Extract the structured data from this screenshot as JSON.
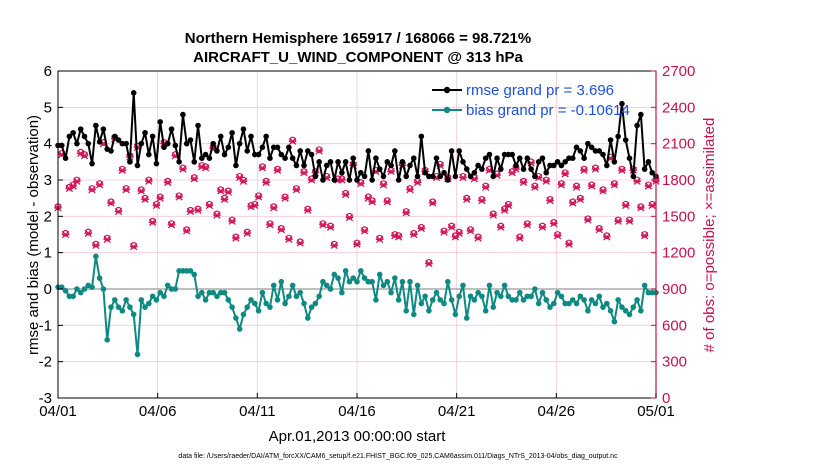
{
  "chart_data": {
    "type": "line",
    "title": "Northern Hemisphere 165917 / 168066 = 98.721%",
    "subtitle": "AIRCRAFT_U_WIND_COMPONENT @ 313 hPa",
    "xlabel": "Apr.01,2013 00:00:00 start",
    "ylabel_left": "rmse and bias (model - observation)",
    "ylabel_right": "# of obs: o=possible; ×=assimilated",
    "footnote": "data file: /Users/raeder/DAI/ATM_forcXX/CAM6_setup/f.e21.FHIST_BGC.f09_025.CAM6assim.011/Diags_NTrS_2013-04/obs_diag_output.nc",
    "x_tick_labels": [
      "04/01",
      "04/06",
      "04/11",
      "04/16",
      "04/21",
      "04/26",
      "05/01"
    ],
    "x_tick_days": [
      0,
      5,
      10,
      15,
      20,
      25,
      30
    ],
    "x_range_days": [
      0,
      30
    ],
    "y_left_ticks": [
      "-3",
      "-2",
      "-1",
      "0",
      "1",
      "2",
      "3",
      "4",
      "5",
      "6"
    ],
    "ylim_left": [
      -3,
      6
    ],
    "y_right_ticks": [
      "0",
      "300",
      "600",
      "900",
      "1200",
      "1500",
      "1800",
      "2100",
      "2400",
      "2700"
    ],
    "ylim_right": [
      0,
      2700
    ],
    "grid": true,
    "legend_position": "top-right",
    "colors": {
      "rmse": "#000000",
      "bias": "#0e8a82",
      "obs": "#d2155a",
      "zero_line": "#aaaaaa",
      "grid": "#f2c8d6",
      "left_axis": "#000000",
      "right_axis": "#c8104e",
      "legend_text": "#1f4fe0"
    },
    "series": [
      {
        "name": "rmse grand pr = 3.696",
        "axis": "left",
        "values": [
          3.95,
          3.95,
          3.6,
          4.2,
          4.3,
          4.0,
          4.4,
          4.2,
          4.0,
          3.45,
          4.5,
          4.05,
          4.4,
          3.85,
          3.8,
          4.2,
          4.1,
          4.0,
          4.0,
          3.5,
          5.4,
          3.4,
          4.0,
          4.3,
          3.7,
          4.2,
          3.45,
          4.6,
          3.9,
          4.0,
          4.4,
          3.95,
          3.5,
          4.8,
          4.0,
          4.1,
          3.5,
          4.5,
          3.6,
          3.7,
          3.6,
          4.0,
          3.8,
          4.2,
          3.7,
          3.9,
          4.3,
          3.4,
          4.0,
          4.4,
          3.8,
          4.2,
          3.7,
          3.7,
          3.9,
          4.2,
          3.6,
          3.9,
          3.9,
          3.7,
          3.6,
          3.9,
          3.6,
          3.4,
          3.8,
          3.4,
          3.8,
          3.7,
          3.1,
          3.5,
          3.0,
          3.4,
          3.5,
          3.0,
          3.5,
          3.2,
          3.5,
          3.0,
          3.6,
          3.0,
          3.2,
          3.1,
          3.8,
          3.0,
          3.6,
          3.3,
          3.1,
          3.5,
          3.4,
          3.8,
          3.0,
          3.5,
          3.1,
          3.4,
          3.6,
          3.1,
          4.2,
          3.2,
          3.1,
          3.1,
          3.6,
          3.1,
          3.2,
          3.0,
          3.8,
          3.1,
          3.8,
          3.5,
          3.3,
          3.1,
          3.2,
          3.4,
          3.3,
          3.6,
          3.7,
          3.1,
          3.6,
          3.3,
          3.7,
          3.7,
          3.7,
          3.4,
          3.6,
          3.3,
          3.6,
          3.3,
          3.1,
          3.5,
          3.6,
          3.2,
          3.4,
          3.4,
          3.5,
          3.4,
          3.5,
          3.6,
          3.6,
          3.9,
          3.8,
          3.6,
          4.0,
          3.9,
          3.8,
          3.8,
          3.7,
          3.4,
          4.1,
          3.5,
          4.2,
          5.1,
          4.1,
          3.6,
          3.1,
          4.5,
          4.8,
          3.3,
          3.5,
          3.2,
          3.1
        ]
      },
      {
        "name": "bias grand pr = -0.10614",
        "axis": "left",
        "values": [
          0.05,
          0.05,
          -0.05,
          -0.2,
          -0.2,
          0.0,
          -0.1,
          0.0,
          0.1,
          0.05,
          0.9,
          0.3,
          0.0,
          -1.4,
          -0.5,
          -0.3,
          -0.5,
          -0.6,
          -0.3,
          -0.5,
          -0.7,
          -1.8,
          -0.3,
          -0.5,
          -0.4,
          -0.2,
          -0.3,
          -0.1,
          -0.2,
          0.1,
          0.0,
          0.0,
          0.5,
          0.5,
          0.5,
          0.5,
          0.4,
          -0.2,
          -0.1,
          -0.3,
          -0.1,
          -0.1,
          -0.2,
          -0.1,
          -0.1,
          -0.3,
          -0.5,
          -0.8,
          -1.1,
          -0.7,
          -0.5,
          -0.3,
          -0.4,
          -0.6,
          -0.1,
          -0.4,
          -0.5,
          0.1,
          -0.3,
          0.2,
          -0.4,
          -0.2,
          0.1,
          -0.2,
          -0.1,
          -0.4,
          -0.8,
          -0.5,
          -0.4,
          -0.2,
          0.2,
          0.1,
          0.0,
          0.4,
          0.3,
          -0.1,
          0.5,
          0.2,
          0.3,
          0.2,
          0.5,
          0.3,
          0.2,
          0.2,
          -0.3,
          0.4,
          0.1,
          0.2,
          -0.1,
          0.3,
          -0.3,
          0.2,
          -0.6,
          0.2,
          -0.7,
          0.1,
          -0.4,
          -0.2,
          -0.6,
          -0.3,
          -0.1,
          -0.3,
          -0.4,
          0.2,
          -0.3,
          -0.7,
          -0.2,
          0.1,
          -0.8,
          -0.2,
          -0.3,
          -0.1,
          -0.2,
          -0.6,
          0.1,
          -0.5,
          -0.1,
          -0.2,
          0.1,
          -0.2,
          -0.3,
          -0.3,
          -0.1,
          -0.3,
          -0.2,
          -0.2,
          0.0,
          -0.4,
          -0.1,
          -0.3,
          -0.5,
          -0.4,
          -0.1,
          -0.2,
          -0.4,
          -0.4,
          -0.3,
          -0.4,
          -0.2,
          -0.3,
          -0.6,
          -0.3,
          -0.4,
          -0.2,
          -0.5,
          -0.4,
          -0.6,
          -0.9,
          -0.3,
          -0.5,
          -0.6,
          -0.7,
          -0.5,
          -0.3,
          -0.6,
          0.1,
          -0.1,
          -0.1,
          -0.1
        ]
      },
      {
        "name": "obs possible",
        "axis": "right",
        "marker": "o",
        "values": [
          1580,
          2020,
          1360,
          1740,
          1760,
          1800,
          2030,
          2010,
          1370,
          1730,
          1270,
          1770,
          2110,
          1320,
          1620,
          2150,
          1550,
          1890,
          1730,
          2000,
          1260,
          2080,
          1720,
          1650,
          1800,
          1460,
          1600,
          1660,
          2110,
          1790,
          1440,
          2010,
          1670,
          1900,
          1390,
          1550,
          1820,
          1560,
          1920,
          1910,
          1600,
          2070,
          1520,
          1720,
          1650,
          1710,
          1470,
          1330,
          1830,
          1800,
          1370,
          1590,
          1600,
          1670,
          1910,
          1790,
          1440,
          1580,
          1890,
          1400,
          1660,
          1320,
          2130,
          1730,
          1290,
          1870,
          1560,
          1810,
          1870,
          2050,
          1440,
          1830,
          1420,
          1270,
          1810,
          1810,
          1690,
          1500,
          1930,
          1280,
          1780,
          1390,
          1660,
          1630,
          1880,
          1320,
          1770,
          1630,
          1880,
          1350,
          1340,
          1930,
          1540,
          1730,
          1360,
          1790,
          1410,
          1880,
          1120,
          1620,
          1830,
          1930,
          1380,
          1820,
          1420,
          1340,
          1370,
          1830,
          1650,
          1390,
          1820,
          1330,
          1640,
          1750,
          1890,
          1520,
          1850,
          1420,
          1560,
          1600,
          1870,
          1900,
          1330,
          1790,
          1440,
          1950,
          1750,
          1830,
          1420,
          1800,
          1640,
          1450,
          1350,
          1770,
          1860,
          1280,
          1620,
          1750,
          1650,
          1890,
          1480,
          1760,
          1900,
          1400,
          1720,
          1340,
          1990,
          1770,
          1470,
          1890,
          1600,
          1470,
          1890,
          1800,
          1580,
          1350,
          1760,
          1600,
          1800
        ]
      },
      {
        "name": "obs assimilated",
        "axis": "right",
        "marker": "x",
        "values": [
          1570,
          2010,
          1350,
          1730,
          1750,
          1790,
          2020,
          2000,
          1360,
          1720,
          1260,
          1760,
          2100,
          1310,
          1610,
          2140,
          1540,
          1880,
          1720,
          1990,
          1250,
          2070,
          1710,
          1640,
          1790,
          1450,
          1590,
          1650,
          2100,
          1780,
          1430,
          2000,
          1660,
          1890,
          1380,
          1540,
          1810,
          1550,
          1910,
          1900,
          1590,
          2060,
          1510,
          1710,
          1640,
          1700,
          1460,
          1320,
          1820,
          1790,
          1360,
          1580,
          1590,
          1660,
          1900,
          1780,
          1430,
          1570,
          1880,
          1390,
          1650,
          1310,
          2120,
          1720,
          1280,
          1860,
          1550,
          1800,
          1860,
          2040,
          1430,
          1820,
          1410,
          1260,
          1800,
          1800,
          1680,
          1490,
          1920,
          1270,
          1770,
          1380,
          1650,
          1620,
          1870,
          1310,
          1760,
          1620,
          1870,
          1340,
          1330,
          1920,
          1530,
          1720,
          1350,
          1780,
          1400,
          1870,
          1110,
          1610,
          1820,
          1920,
          1370,
          1810,
          1410,
          1330,
          1360,
          1820,
          1640,
          1380,
          1810,
          1320,
          1630,
          1740,
          1880,
          1510,
          1840,
          1410,
          1550,
          1590,
          1860,
          1890,
          1320,
          1780,
          1430,
          1940,
          1740,
          1820,
          1410,
          1790,
          1630,
          1440,
          1340,
          1760,
          1850,
          1270,
          1610,
          1740,
          1640,
          1880,
          1470,
          1750,
          1890,
          1390,
          1710,
          1330,
          1980,
          1760,
          1460,
          1880,
          1590,
          1460,
          1880,
          1790,
          1570,
          1340,
          1750,
          1590,
          1790
        ]
      }
    ]
  }
}
